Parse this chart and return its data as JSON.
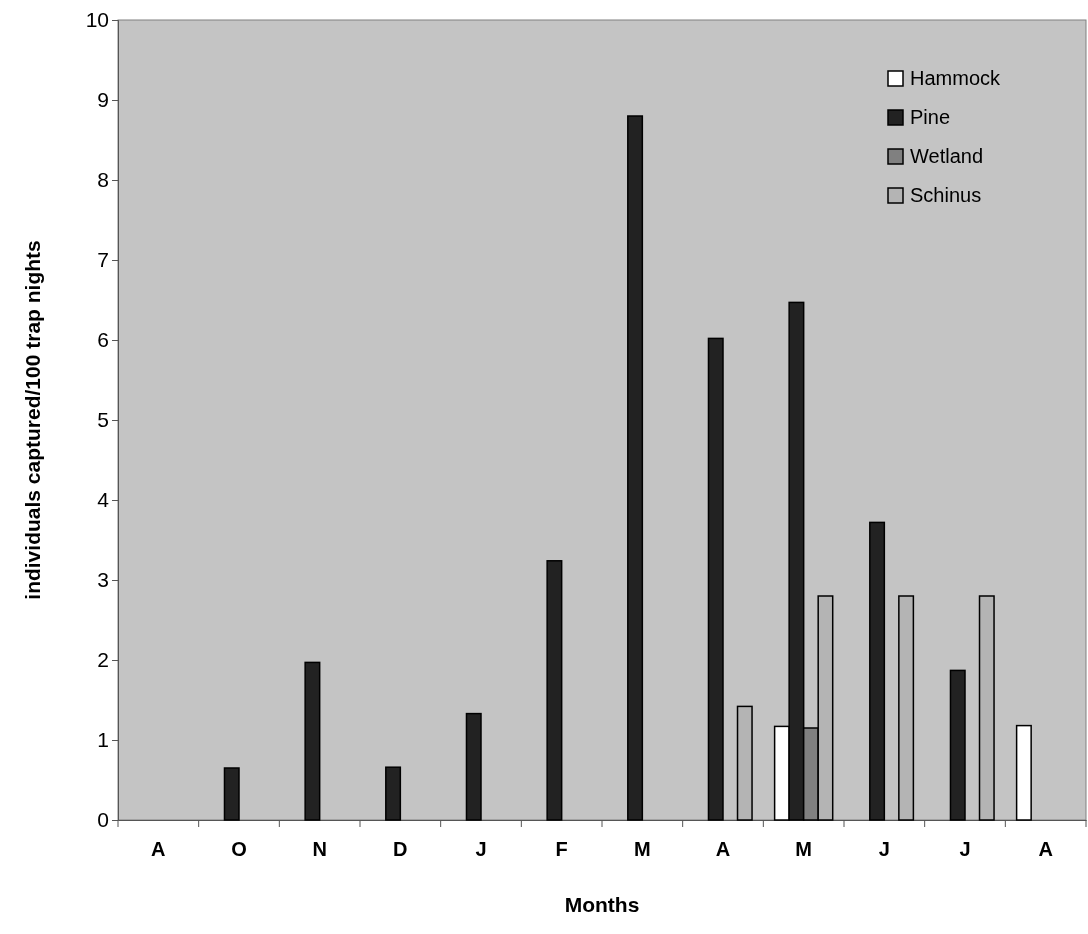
{
  "chart_data": {
    "type": "bar",
    "xlabel": "Months",
    "ylabel": "individuals captured/100 trap nights",
    "categories": [
      "A",
      "O",
      "N",
      "D",
      "J",
      "F",
      "M",
      "A",
      "M",
      "J",
      "J",
      "A"
    ],
    "series": [
      {
        "name": "Hammock",
        "color": "#ffffff",
        "values": [
          null,
          null,
          null,
          null,
          null,
          null,
          null,
          null,
          1.17,
          null,
          null,
          1.18
        ]
      },
      {
        "name": "Pine",
        "color": "#222222",
        "values": [
          null,
          0.65,
          1.97,
          0.66,
          1.33,
          3.24,
          8.8,
          6.02,
          6.47,
          3.72,
          1.87,
          null
        ]
      },
      {
        "name": "Wetland",
        "color": "#808080",
        "values": [
          null,
          null,
          null,
          null,
          null,
          null,
          null,
          null,
          1.15,
          null,
          null,
          null
        ]
      },
      {
        "name": "Schinus",
        "color": "#b4b4b4",
        "values": [
          null,
          null,
          null,
          null,
          null,
          null,
          null,
          1.42,
          2.8,
          2.8,
          2.8,
          null
        ]
      }
    ],
    "ylim": [
      0,
      10
    ],
    "yticks": [
      0,
      1,
      2,
      3,
      4,
      5,
      6,
      7,
      8,
      9,
      10
    ],
    "grid": false,
    "legend": "top right"
  }
}
